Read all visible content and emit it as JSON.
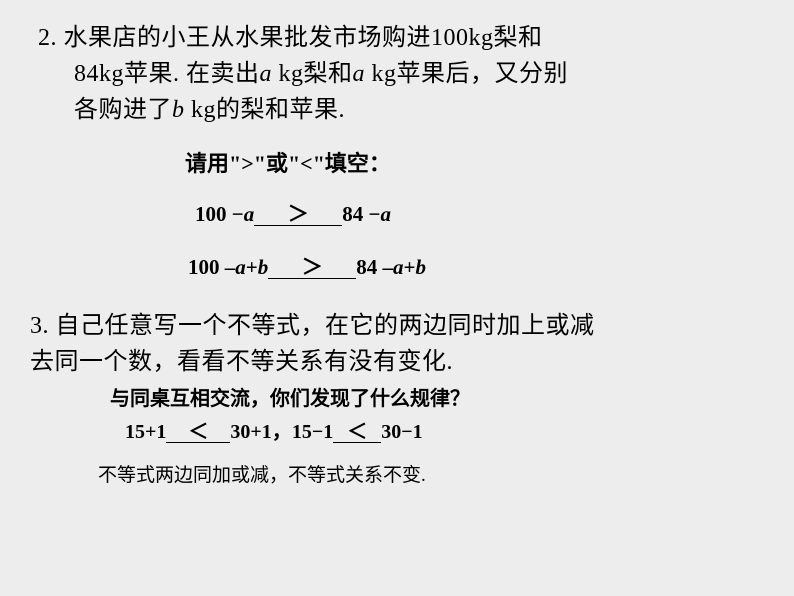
{
  "problem2": {
    "number_label": "2. ",
    "line1": "水果店的小王从水果批发市场购进100kg梨和",
    "line2_part1": "84kg苹果. 在卖出",
    "line2_var_a1": "a",
    "line2_part2": " kg梨和",
    "line2_var_a2": "a",
    "line2_part3": " kg苹果后，又分别",
    "line3_part1": "各购进了",
    "line3_var_b": "b",
    "line3_part2": " kg的梨和苹果.",
    "instruction": "请用\">\"或\"<\"填空：",
    "expr1": {
      "left_num": "100 ",
      "left_minus": "−",
      "left_var": "a",
      "answer": "＞",
      "right_num": "84 ",
      "right_minus": "−",
      "right_var": "a"
    },
    "expr2": {
      "left_p1": "100 ",
      "left_m1": "–",
      "left_v1": "a",
      "left_plus": "+",
      "left_v2": "b",
      "answer": "＞",
      "right_p1": "84 ",
      "right_m1": "–",
      "right_v1": "a",
      "right_plus": "+",
      "right_v2": "b"
    }
  },
  "problem3": {
    "number_label": "3. ",
    "line1": "自己任意写一个不等式，在它的两边同时加上或减",
    "line2": "去同一个数，看看不等关系有没有变化.",
    "sub_instruction": "与同桌互相交流，你们发现了什么规律？",
    "expr": {
      "p1": "15+1",
      "ans1": "＜",
      "p2": "30+1",
      "comma": "，",
      "p3": "15−1",
      "ans2": "＜",
      "p4": "30−1"
    },
    "conclusion": "不等式两边同加或减，不等式关系不变."
  }
}
